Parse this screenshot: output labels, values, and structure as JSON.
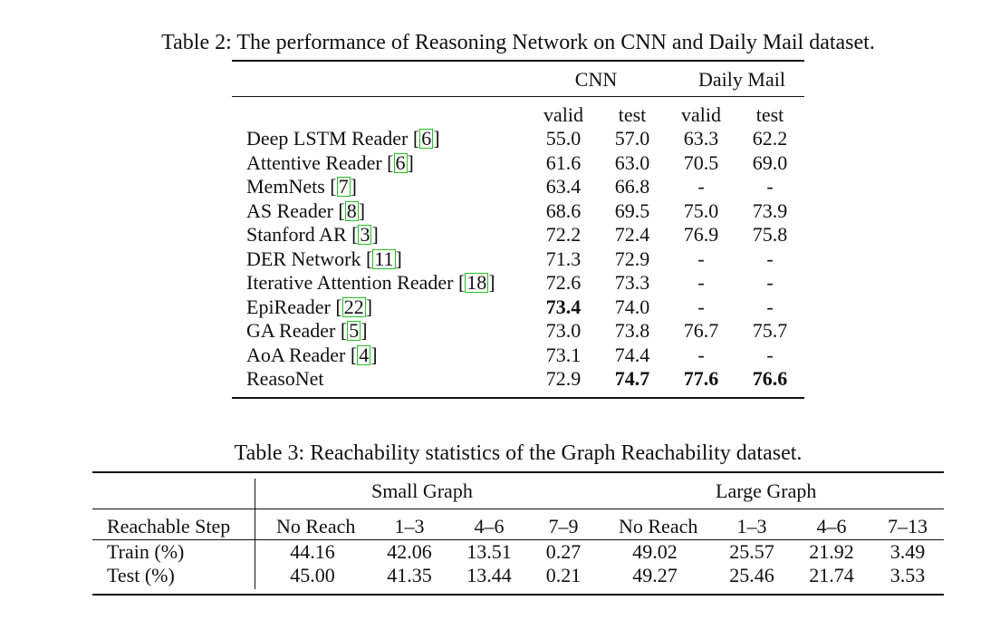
{
  "table2": {
    "caption": "Table 2: The performance of Reasoning Network on CNN and Daily Mail dataset.",
    "group_headers": [
      "CNN",
      "Daily Mail"
    ],
    "sub_headers": [
      "valid",
      "test",
      "valid",
      "test"
    ],
    "rows": [
      {
        "name": "Deep LSTM Reader",
        "cite": "6",
        "values": [
          "55.0",
          "57.0",
          "63.3",
          "62.2"
        ]
      },
      {
        "name": "Attentive Reader",
        "cite": "6",
        "values": [
          "61.6",
          "63.0",
          "70.5",
          "69.0"
        ]
      },
      {
        "name": "MemNets",
        "cite": "7",
        "values": [
          "63.4",
          "66.8",
          "-",
          "-"
        ]
      },
      {
        "name": "AS Reader",
        "cite": "8",
        "values": [
          "68.6",
          "69.5",
          "75.0",
          "73.9"
        ]
      },
      {
        "name": "Stanford AR",
        "cite": "3",
        "values": [
          "72.2",
          "72.4",
          "76.9",
          "75.8"
        ]
      },
      {
        "name": "DER Network",
        "cite": "11",
        "values": [
          "71.3",
          "72.9",
          "-",
          "-"
        ]
      },
      {
        "name": "Iterative Attention Reader",
        "cite": "18",
        "values": [
          "72.6",
          "73.3",
          "-",
          "-"
        ]
      },
      {
        "name": "EpiReader",
        "cite": "22",
        "values": [
          "73.4",
          "74.0",
          "-",
          "-"
        ]
      },
      {
        "name": "GA Reader",
        "cite": "5",
        "values": [
          "73.0",
          "73.8",
          "76.7",
          "75.7"
        ]
      },
      {
        "name": "AoA Reader",
        "cite": "4",
        "values": [
          "73.1",
          "74.4",
          "-",
          "-"
        ]
      },
      {
        "name": "ReasoNet",
        "cite": "",
        "values": [
          "72.9",
          "74.7",
          "77.6",
          "76.6"
        ]
      }
    ]
  },
  "table3": {
    "caption": "Table 3: Reachability statistics of the Graph Reachability dataset.",
    "group_headers": [
      "Small Graph",
      "Large Graph"
    ],
    "row_header": "Reachable Step",
    "sub_headers": [
      "No Reach",
      "1–3",
      "4–6",
      "7–9",
      "No Reach",
      "1–3",
      "4–6",
      "7–13"
    ],
    "rows": [
      {
        "name": "Train (%)",
        "values": [
          "44.16",
          "42.06",
          "13.51",
          "0.27",
          "49.02",
          "25.57",
          "21.92",
          "3.49"
        ]
      },
      {
        "name": "Test (%)",
        "values": [
          "45.00",
          "41.35",
          "13.44",
          "0.21",
          "49.27",
          "25.46",
          "21.74",
          "3.53"
        ]
      }
    ]
  }
}
